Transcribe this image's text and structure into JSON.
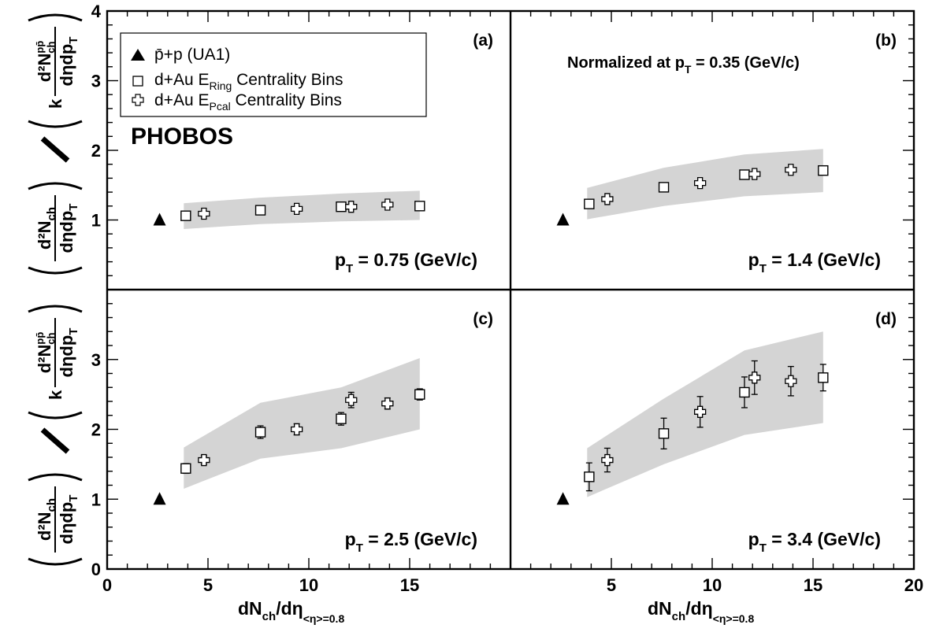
{
  "chart_data": {
    "type": "scatter",
    "brand": "PHOBOS",
    "x_axis": {
      "label_main": "dN",
      "label_sub": "ch",
      "label_tail": "/dη",
      "label_tail_sub": "<η>=0.8",
      "left_range": [
        0,
        20
      ],
      "right_range": [
        0,
        20
      ],
      "left_ticks": [
        "0",
        "5",
        "10",
        "15"
      ],
      "right_ticks": [
        "5",
        "10",
        "15",
        "20"
      ]
    },
    "y_axis": {
      "upper_range": [
        0,
        4
      ],
      "lower_range": [
        0,
        4
      ],
      "upper_ticks": [
        "1",
        "2",
        "3",
        "4"
      ],
      "lower_ticks": [
        "0",
        "1",
        "2",
        "3"
      ]
    },
    "y_label": {
      "num_top": "d²N",
      "num_sub": "ch",
      "den": "dηdp",
      "den_sub": "T",
      "ref_k": "k",
      "ref_num": "d²N",
      "ref_sup": "pp̄",
      "ref_sub": "ch"
    },
    "legend": {
      "ua1": "p̄+p (UA1)",
      "ering_prefix": "d+Au E",
      "ering_sub": "Ring",
      "ering_suffix": " Centrality Bins",
      "epcal_prefix": "d+Au E",
      "epcal_sub": "Pcal",
      "epcal_suffix": " Centrality Bins"
    },
    "normalized_note": "Normalized at p",
    "normalized_note_sub": "T",
    "normalized_note_tail": " = 0.35 (GeV/c)",
    "series_names": [
      "p̄+p (UA1)",
      "d+Au E_Ring Centrality Bins",
      "d+Au E_Pcal Centrality Bins"
    ],
    "panels": [
      {
        "id": "a",
        "tag": "(a)",
        "pt_label": "p",
        "pt_sub": "T",
        "pt_value": " = 0.75 (GeV/c)",
        "ua1": [
          {
            "x": 2.6,
            "y": 1.0
          }
        ],
        "ering": [
          {
            "x": 3.9,
            "y": 1.06,
            "err": 0.0
          },
          {
            "x": 7.6,
            "y": 1.14,
            "err": 0.0
          },
          {
            "x": 11.6,
            "y": 1.19,
            "err": 0.0
          },
          {
            "x": 15.5,
            "y": 1.2,
            "err": 0.0
          }
        ],
        "epcal": [
          {
            "x": 4.8,
            "y": 1.09,
            "err": 0.0
          },
          {
            "x": 9.4,
            "y": 1.16,
            "err": 0.0
          },
          {
            "x": 12.1,
            "y": 1.19,
            "err": 0.0
          },
          {
            "x": 13.9,
            "y": 1.22,
            "err": 0.0
          }
        ],
        "band_upper": [
          [
            3.8,
            1.24
          ],
          [
            7.6,
            1.32
          ],
          [
            11.6,
            1.38
          ],
          [
            15.5,
            1.42
          ]
        ],
        "band_lower": [
          [
            3.8,
            0.87
          ],
          [
            7.6,
            0.94
          ],
          [
            11.6,
            0.98
          ],
          [
            15.5,
            1.0
          ]
        ]
      },
      {
        "id": "b",
        "tag": "(b)",
        "pt_label": "p",
        "pt_sub": "T",
        "pt_value": " = 1.4 (GeV/c)",
        "ua1": [
          {
            "x": 2.6,
            "y": 1.0
          }
        ],
        "ering": [
          {
            "x": 3.9,
            "y": 1.23,
            "err": 0.0
          },
          {
            "x": 7.6,
            "y": 1.47,
            "err": 0.0
          },
          {
            "x": 11.6,
            "y": 1.65,
            "err": 0.0
          },
          {
            "x": 15.5,
            "y": 1.71,
            "err": 0.0
          }
        ],
        "epcal": [
          {
            "x": 4.8,
            "y": 1.3,
            "err": 0.0
          },
          {
            "x": 9.4,
            "y": 1.53,
            "err": 0.0
          },
          {
            "x": 12.1,
            "y": 1.66,
            "err": 0.0
          },
          {
            "x": 13.9,
            "y": 1.72,
            "err": 0.0
          }
        ],
        "band_upper": [
          [
            3.8,
            1.46
          ],
          [
            7.6,
            1.75
          ],
          [
            11.6,
            1.94
          ],
          [
            15.5,
            2.02
          ]
        ],
        "band_lower": [
          [
            3.8,
            1.01
          ],
          [
            7.6,
            1.2
          ],
          [
            11.6,
            1.34
          ],
          [
            15.5,
            1.4
          ]
        ]
      },
      {
        "id": "c",
        "tag": "(c)",
        "pt_label": "p",
        "pt_sub": "T",
        "pt_value": " = 2.5 (GeV/c)",
        "ua1": [
          {
            "x": 2.6,
            "y": 1.0
          }
        ],
        "ering": [
          {
            "x": 3.9,
            "y": 1.44,
            "err": 0.07
          },
          {
            "x": 7.6,
            "y": 1.96,
            "err": 0.09
          },
          {
            "x": 11.6,
            "y": 2.15,
            "err": 0.09
          },
          {
            "x": 15.5,
            "y": 2.5,
            "err": 0.08
          }
        ],
        "epcal": [
          {
            "x": 4.8,
            "y": 1.56,
            "err": 0.06
          },
          {
            "x": 9.4,
            "y": 2.0,
            "err": 0.08
          },
          {
            "x": 12.1,
            "y": 2.42,
            "err": 0.11
          },
          {
            "x": 13.9,
            "y": 2.37,
            "err": 0.08
          }
        ],
        "band_upper": [
          [
            3.8,
            1.74
          ],
          [
            7.6,
            2.38
          ],
          [
            11.6,
            2.6
          ],
          [
            15.5,
            3.02
          ]
        ],
        "band_lower": [
          [
            3.8,
            1.15
          ],
          [
            7.6,
            1.58
          ],
          [
            11.6,
            1.73
          ],
          [
            15.5,
            2.0
          ]
        ]
      },
      {
        "id": "d",
        "tag": "(d)",
        "pt_label": "p",
        "pt_sub": "T",
        "pt_value": " = 3.4 (GeV/c)",
        "ua1": [
          {
            "x": 2.6,
            "y": 1.0
          }
        ],
        "ering": [
          {
            "x": 3.9,
            "y": 1.32,
            "err": 0.2
          },
          {
            "x": 7.6,
            "y": 1.94,
            "err": 0.22
          },
          {
            "x": 11.6,
            "y": 2.53,
            "err": 0.22
          },
          {
            "x": 15.5,
            "y": 2.74,
            "err": 0.19
          }
        ],
        "epcal": [
          {
            "x": 4.8,
            "y": 1.56,
            "err": 0.17
          },
          {
            "x": 9.4,
            "y": 2.25,
            "err": 0.22
          },
          {
            "x": 12.1,
            "y": 2.74,
            "err": 0.24
          },
          {
            "x": 13.9,
            "y": 2.69,
            "err": 0.21
          }
        ],
        "band_upper": [
          [
            3.8,
            1.73
          ],
          [
            7.6,
            2.44
          ],
          [
            11.6,
            3.13
          ],
          [
            15.5,
            3.4
          ]
        ],
        "band_lower": [
          [
            3.8,
            1.03
          ],
          [
            7.6,
            1.5
          ],
          [
            11.6,
            1.92
          ],
          [
            15.5,
            2.09
          ]
        ]
      }
    ],
    "colors": {
      "band": "#d4d4d4",
      "marker": "#000000",
      "background": "#ffffff"
    }
  }
}
